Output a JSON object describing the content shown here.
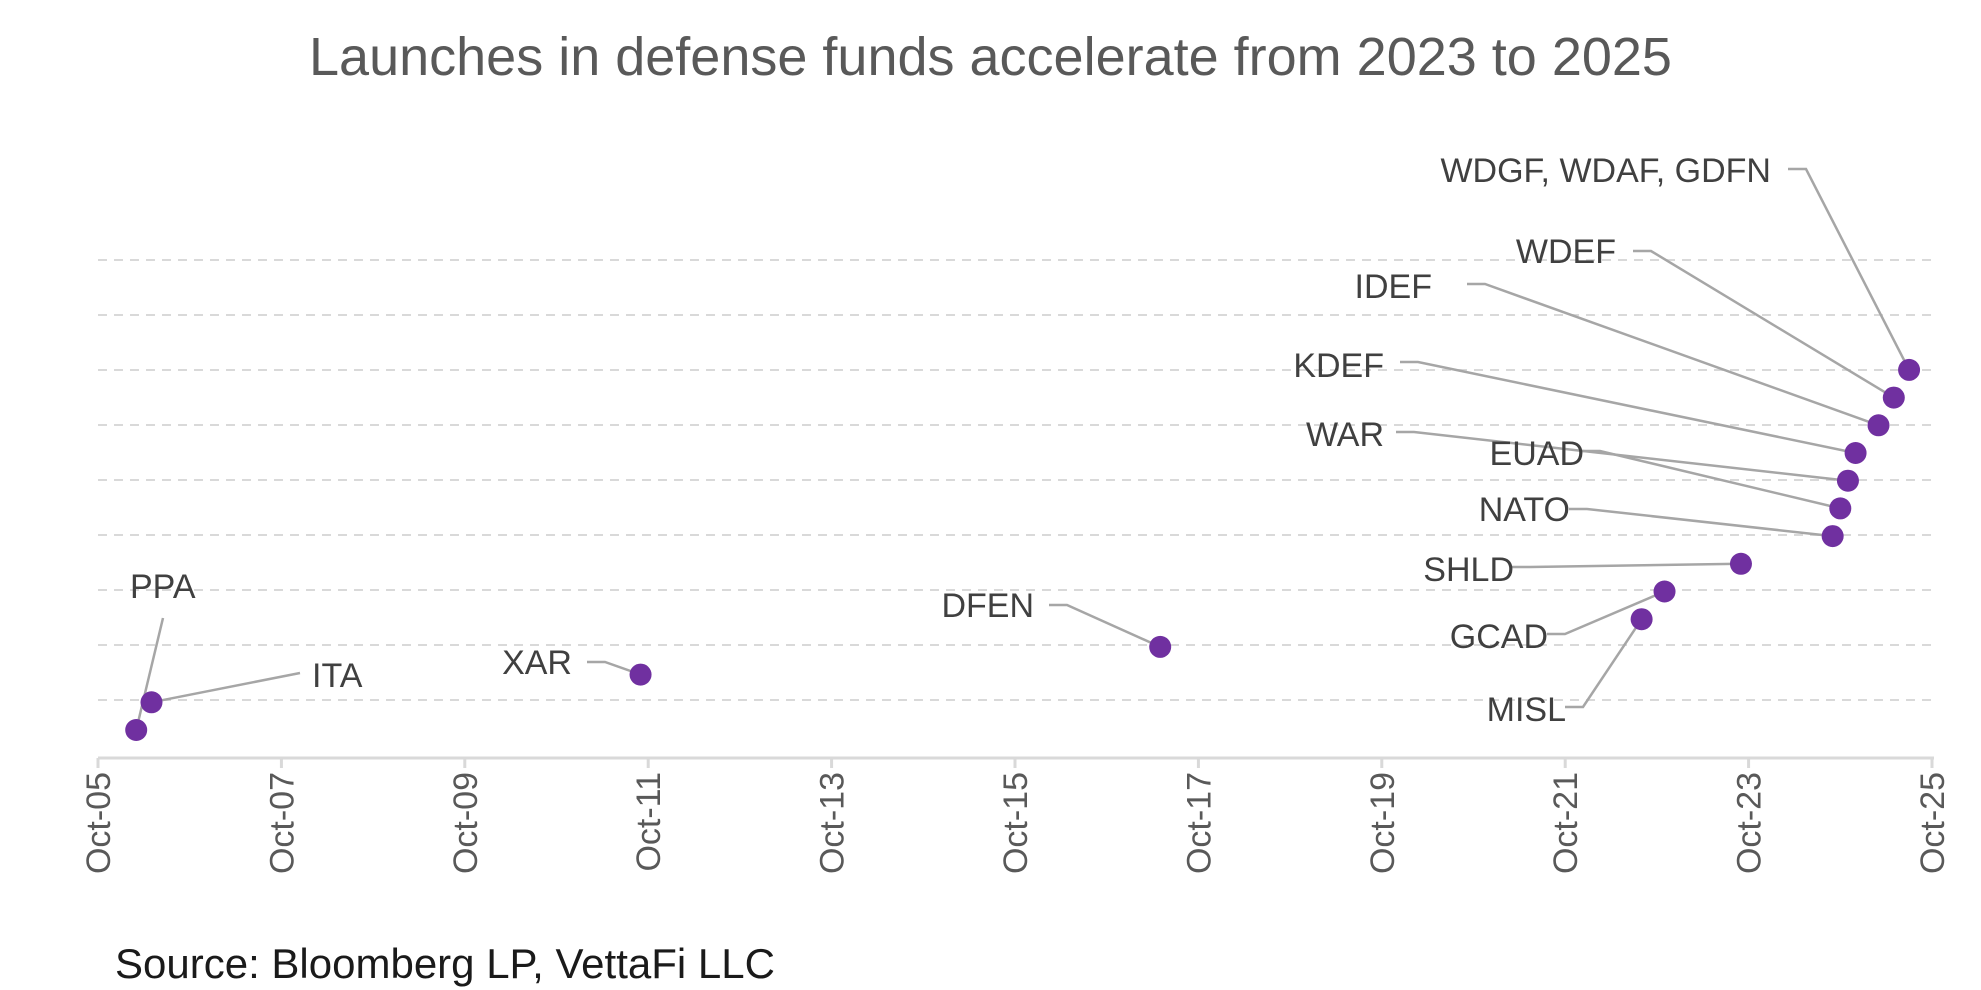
{
  "chart_data": {
    "type": "scatter",
    "title": "Launches in defense funds accelerate from 2023 to 2025",
    "source": "Source: Bloomberg LP, VettaFi LLC",
    "xlabel": "",
    "ylabel": "",
    "x_ticks": [
      "Oct-05",
      "Oct-07",
      "Oct-09",
      "Oct-11",
      "Oct-13",
      "Oct-15",
      "Oct-17",
      "Oct-19",
      "Oct-21",
      "Oct-23",
      "Oct-25"
    ],
    "xlim": [
      "2005-10",
      "2025-10"
    ],
    "grid": "horizontal dashed",
    "points": [
      {
        "label": "PPA",
        "date": "2006-03",
        "rank": 1
      },
      {
        "label": "ITA",
        "date": "2006-05",
        "rank": 2
      },
      {
        "label": "XAR",
        "date": "2011-09",
        "rank": 3
      },
      {
        "label": "DFEN",
        "date": "2017-05",
        "rank": 4
      },
      {
        "label": "MISL",
        "date": "2022-08",
        "rank": 5
      },
      {
        "label": "GCAD",
        "date": "2022-11",
        "rank": 6
      },
      {
        "label": "SHLD",
        "date": "2023-09",
        "rank": 7
      },
      {
        "label": "NATO",
        "date": "2024-09",
        "rank": 8
      },
      {
        "label": "EUAD",
        "date": "2024-10",
        "rank": 9
      },
      {
        "label": "WAR",
        "date": "2024-11",
        "rank": 10
      },
      {
        "label": "KDEF",
        "date": "2024-12",
        "rank": 11
      },
      {
        "label": "IDEF",
        "date": "2025-03",
        "rank": 12
      },
      {
        "label": "WDEF",
        "date": "2025-05",
        "rank": 13
      },
      {
        "label": "WDGF, WDAF, GDFN",
        "date": "2025-07",
        "rank": 14
      }
    ],
    "colors": {
      "marker": "#7030A0",
      "leader": "#a6a6a6",
      "grid": "#d9d9d9",
      "axis": "#d9d9d9"
    }
  }
}
